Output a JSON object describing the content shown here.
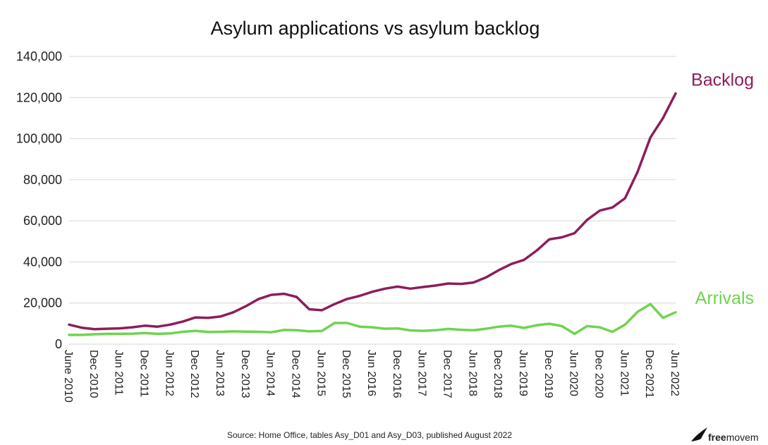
{
  "chart_data": {
    "type": "line",
    "title": "Asylum applications vs asylum backlog",
    "xlabel": "",
    "ylabel": "",
    "ylim": [
      0,
      140000
    ],
    "y_ticks": [
      "0",
      "20,000",
      "40,000",
      "60,000",
      "80,000",
      "100,000",
      "120,000",
      "140,000"
    ],
    "y_tick_values": [
      0,
      20000,
      40000,
      60000,
      80000,
      100000,
      120000,
      140000
    ],
    "grid": "horizontal",
    "x": [
      "June 2010",
      "Sep 2010",
      "Dec 2010",
      "Mar 2011",
      "Jun 2011",
      "Sep 2011",
      "Dec 2011",
      "Mar 2012",
      "Jun 2012",
      "Sep 2012",
      "Dec 2012",
      "Mar 2013",
      "Jun 2013",
      "Sep 2013",
      "Dec 2013",
      "Mar 2014",
      "Jun 2014",
      "Sep 2014",
      "Dec 2014",
      "Mar 2015",
      "Jun 2015",
      "Sep 2015",
      "Dec 2015",
      "Mar 2016",
      "Jun 2016",
      "Sep 2016",
      "Dec 2016",
      "Mar 2017",
      "Jun 2017",
      "Sep 2017",
      "Dec 2017",
      "Mar 2018",
      "Jun 2018",
      "Sep 2018",
      "Dec 2018",
      "Mar 2019",
      "Jun 2019",
      "Sep 2019",
      "Dec 2019",
      "Mar 2020",
      "Jun 2020",
      "Sep 2020",
      "Dec 2020",
      "Mar 2021",
      "Jun 2021",
      "Sep 2021",
      "Dec 2021",
      "Mar 2022",
      "Jun 2022"
    ],
    "x_tick_labels": [
      "June 2010",
      "Dec 2010",
      "Jun 2011",
      "Dec 2011",
      "Jun 2012",
      "Dec 2012",
      "Jun 2013",
      "Dec 2013",
      "Jun 2014",
      "Dec 2014",
      "Jun 2015",
      "Dec 2015",
      "Jun 2016",
      "Dec 2016",
      "Jun 2017",
      "Dec 2017",
      "Jun 2018",
      "Dec 2018",
      "Jun 2019",
      "Dec 2019",
      "Jun 2020",
      "Dec 2020",
      "Jun 2021",
      "Dec 2021",
      "Jun 2022"
    ],
    "series": [
      {
        "name": "Backlog",
        "color": "#8e1d5b",
        "values": [
          9500,
          8000,
          7300,
          7500,
          7700,
          8200,
          9000,
          8500,
          9500,
          11000,
          13000,
          12800,
          13500,
          15500,
          18500,
          22000,
          24000,
          24500,
          23000,
          17000,
          16500,
          19500,
          22000,
          23500,
          25500,
          27000,
          28000,
          27000,
          27800,
          28500,
          29500,
          29300,
          30000,
          32500,
          36000,
          39000,
          41000,
          45500,
          51000,
          52000,
          54000,
          60500,
          65000,
          66500,
          71000,
          84000,
          100500,
          110000,
          122000
        ]
      },
      {
        "name": "Arrivals",
        "color": "#6ed44f",
        "values": [
          4500,
          4500,
          4800,
          5000,
          5000,
          5100,
          5400,
          5000,
          5200,
          6000,
          6500,
          5900,
          6000,
          6200,
          6100,
          6000,
          5800,
          6900,
          6800,
          6200,
          6400,
          10300,
          10300,
          8500,
          8200,
          7500,
          7700,
          6700,
          6500,
          6800,
          7400,
          7000,
          6800,
          7500,
          8500,
          9000,
          7900,
          9200,
          9900,
          8800,
          5000,
          8800,
          8200,
          6000,
          9500,
          15800,
          19500,
          12800,
          15500
        ]
      }
    ],
    "source": "Source: Home Office, tables Asy_D01 and Asy_D03, published August 2022"
  },
  "logo": {
    "text": "freemovem",
    "bold_part": "free",
    "rest_part": "movem"
  }
}
